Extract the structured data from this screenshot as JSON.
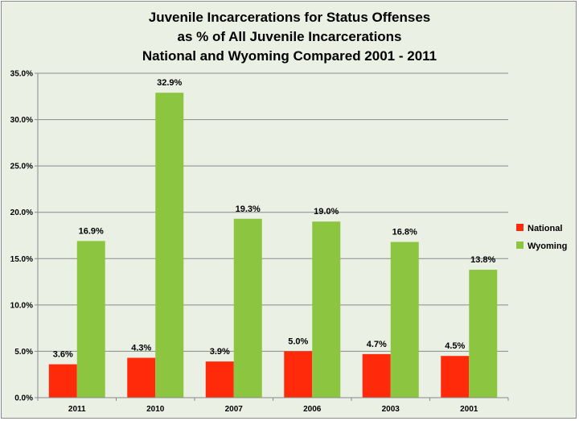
{
  "chart_data": {
    "type": "bar",
    "title_lines": [
      "Juvenile Incarcerations for Status Offenses",
      "as % of All Juvenile Incarcerations",
      "National and Wyoming Compared 2001 - 2011"
    ],
    "categories": [
      "2011",
      "2010",
      "2007",
      "2006",
      "2003",
      "2001"
    ],
    "series": [
      {
        "name": "National",
        "color": "#ff2a0a",
        "values": [
          3.6,
          4.3,
          3.9,
          5.0,
          4.7,
          4.5
        ],
        "labels": [
          "3.6%",
          "4.3%",
          "3.9%",
          "5.0%",
          "4.7%",
          "4.5%"
        ]
      },
      {
        "name": "Wyoming",
        "color": "#8cc640",
        "values": [
          16.9,
          32.9,
          19.3,
          19.0,
          16.8,
          13.8
        ],
        "labels": [
          "16.9%",
          "32.9%",
          "19.3%",
          "19.0%",
          "16.8%",
          "13.8%"
        ]
      }
    ],
    "y_ticks": [
      {
        "value": 0,
        "label": "0.0%"
      },
      {
        "value": 5,
        "label": "5.0%"
      },
      {
        "value": 10,
        "label": "10.0%"
      },
      {
        "value": 15,
        "label": "15.0%"
      },
      {
        "value": 20,
        "label": "20.0%"
      },
      {
        "value": 25,
        "label": "25.0%"
      },
      {
        "value": 30,
        "label": "30.0%"
      },
      {
        "value": 35,
        "label": "35.0%"
      }
    ],
    "ylim": [
      0,
      35
    ],
    "grid": true,
    "legend_position": "right",
    "gridline_color": "#8a8a8a",
    "background_color": "#ebf0e4"
  }
}
